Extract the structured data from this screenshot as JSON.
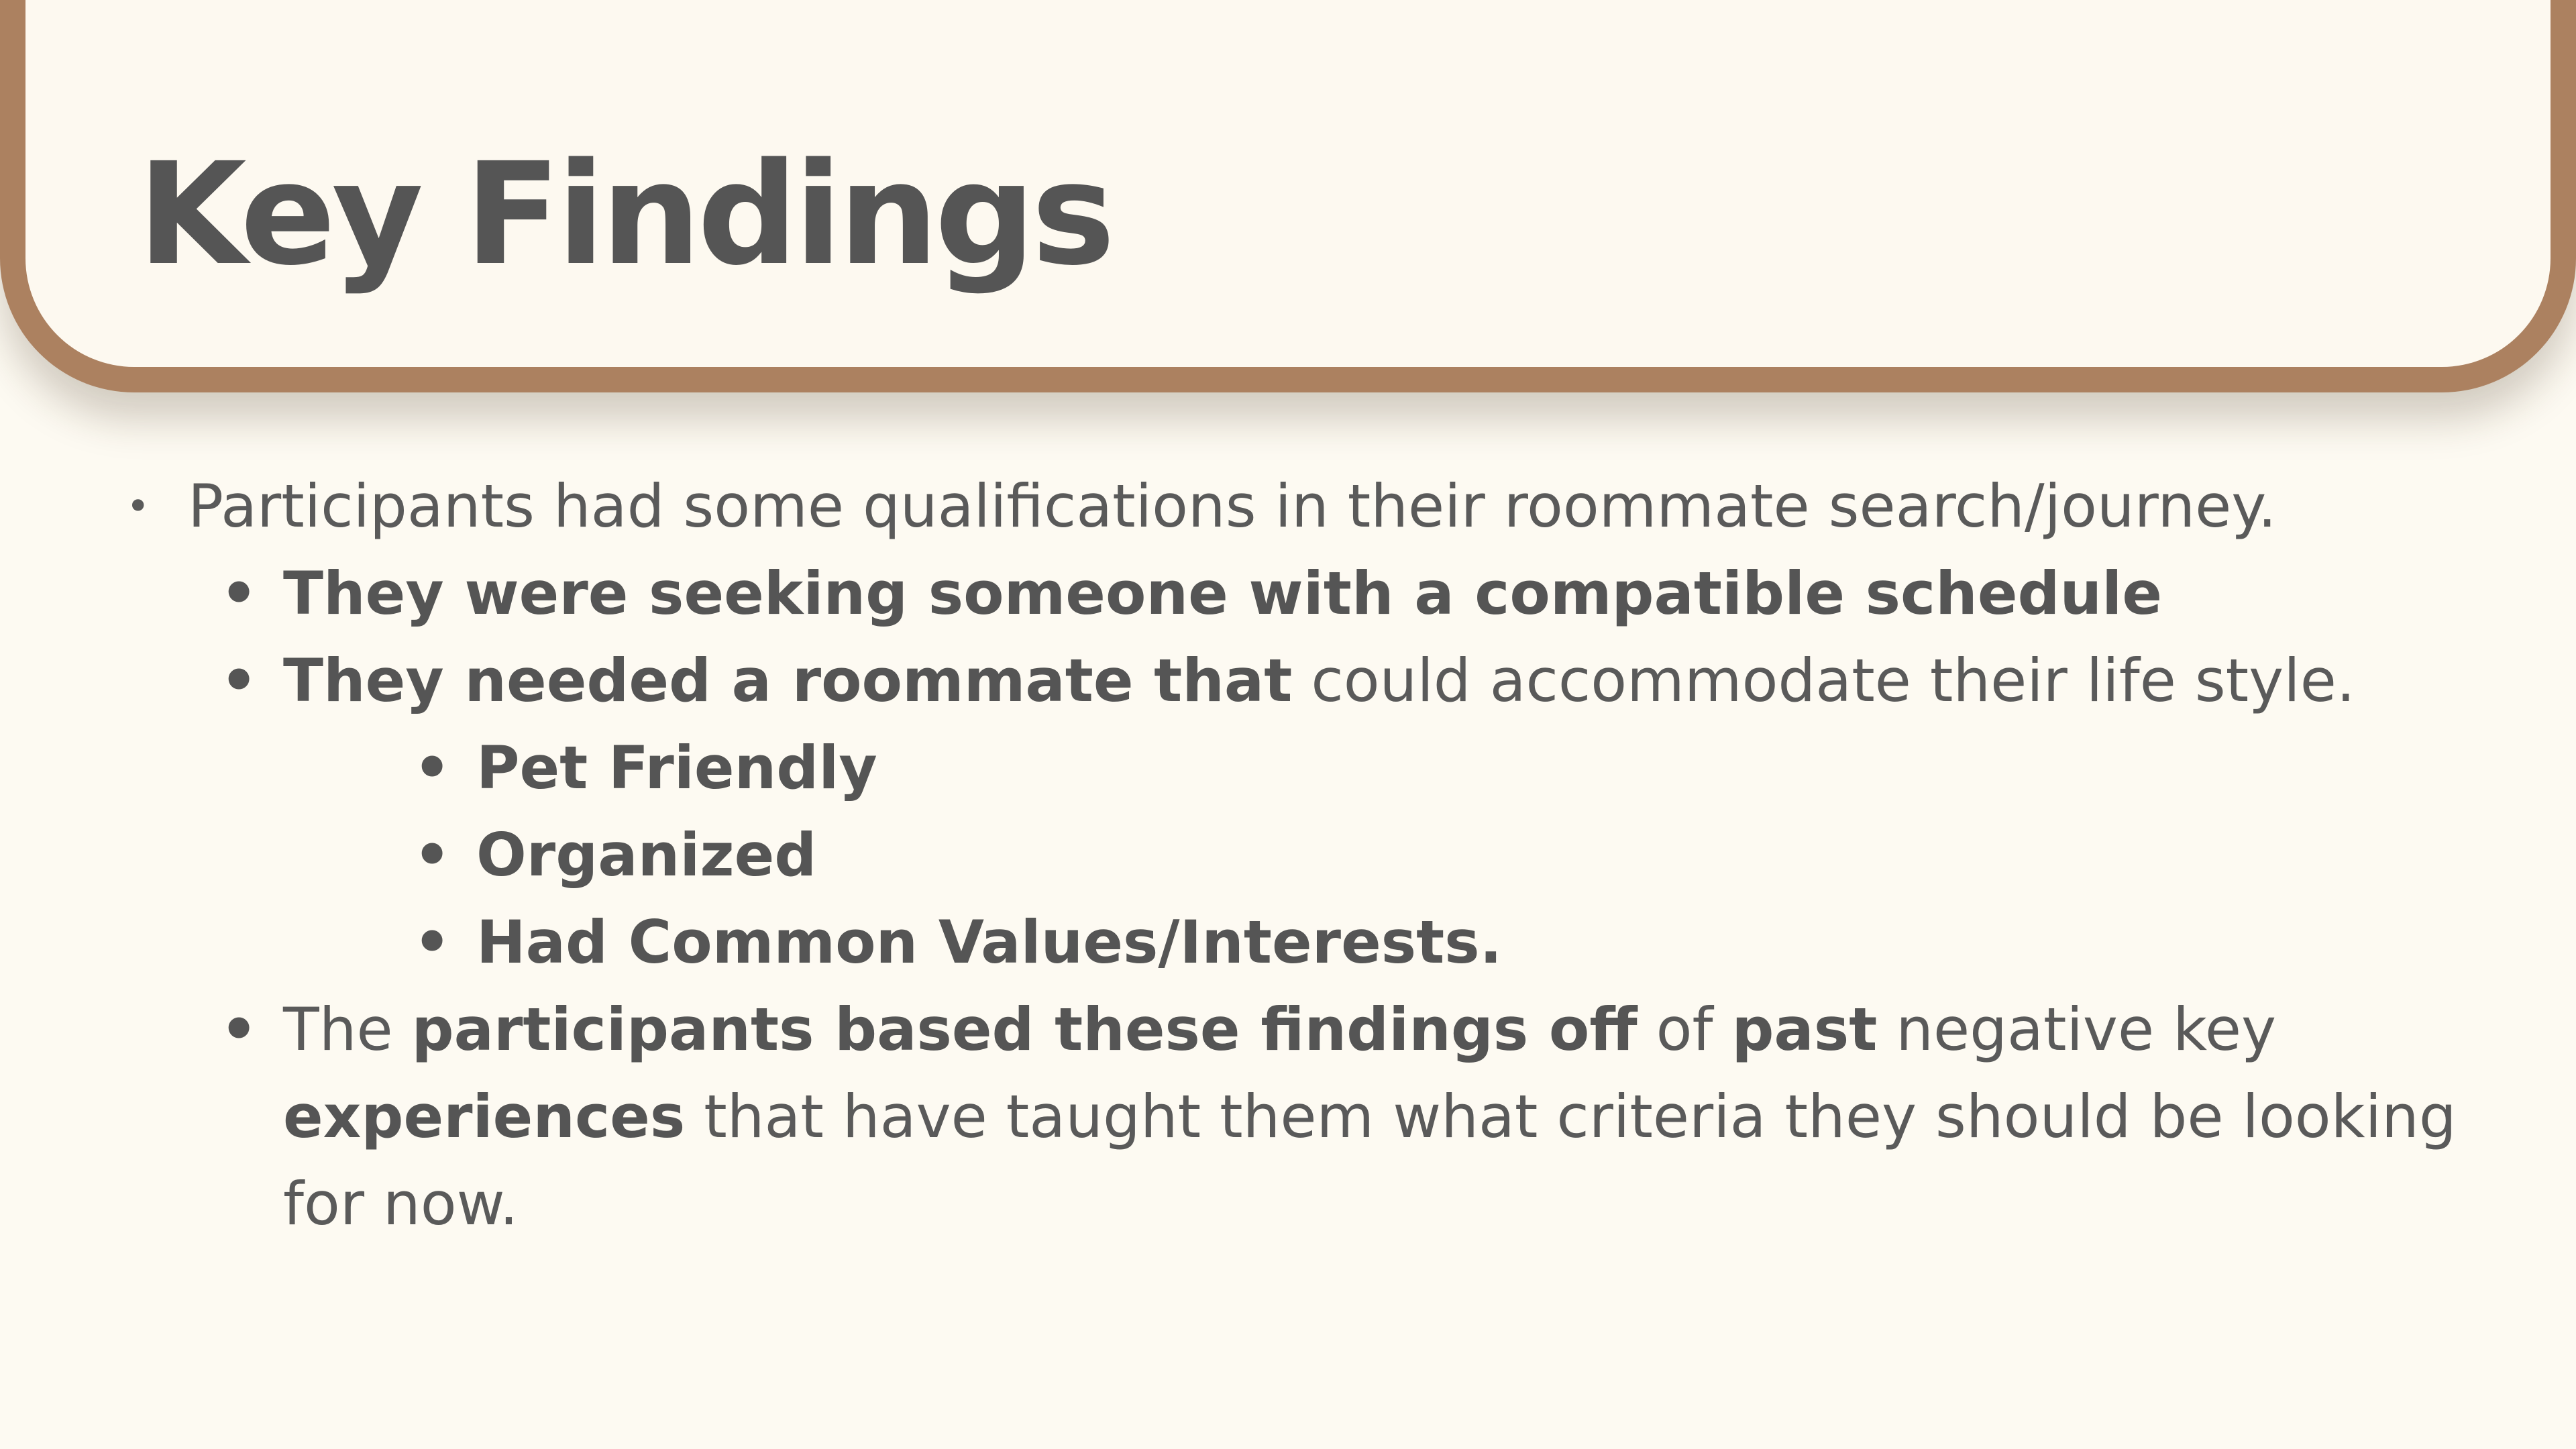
{
  "slide": {
    "title": "Key Findings",
    "points": {
      "p1": "Participants had some qualifications in their roommate search/journey.",
      "p1a": "They were seeking someone with a compatible schedule",
      "p1b_bold": "They needed a roommate that",
      "p1b_rest": " could accommodate their life style.",
      "p1b1": "Pet Friendly",
      "p1b2": "Organized",
      "p1b3": "Had Common Values/Interests.",
      "p1c_t1": "The ",
      "p1c_b1": "participants based these findings off",
      "p1c_t2": " of ",
      "p1c_b2": "past",
      "p1c_t3": " negative key",
      "p1c_b3": "experiences",
      "p1c_t4": " that have taught them what criteria they should be looking",
      "p1c_t5": "for now."
    },
    "colors": {
      "frame": "#ac8160",
      "background": "#fdfaf2",
      "text": "#5a5a5a"
    }
  }
}
